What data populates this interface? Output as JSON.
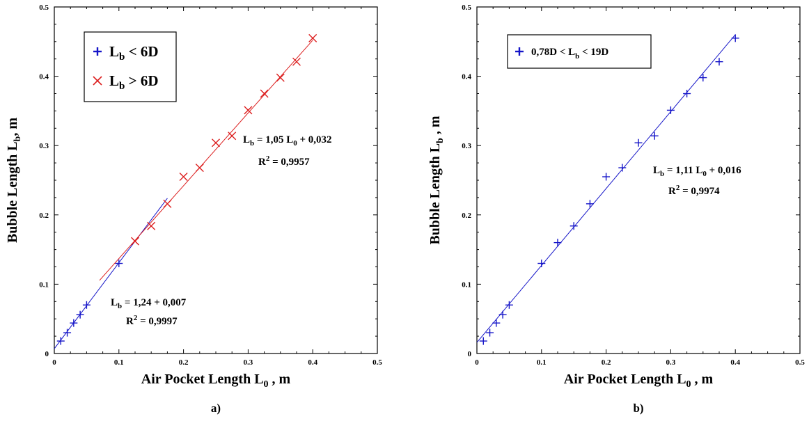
{
  "chart_data": [
    {
      "type": "scatter",
      "panel_label": "a)",
      "xlabel": "Air Pocket Length L0 , m",
      "ylabel": "Bubble Length Lb, m",
      "xlim": [
        0,
        0.5
      ],
      "ylim": [
        0,
        0.5
      ],
      "x_ticks": [
        "0",
        "0.1",
        "0.2",
        "0.3",
        "0.4",
        "0.5"
      ],
      "y_ticks": [
        "0",
        "0.1",
        "0.2",
        "0.3",
        "0.4",
        "0.5"
      ],
      "legend_placement": "top-left",
      "series": [
        {
          "name": "Lb < 6D",
          "marker": "plus",
          "color": "#1414c8",
          "x": [
            0.01,
            0.02,
            0.03,
            0.04,
            0.05,
            0.1
          ],
          "y": [
            0.018,
            0.03,
            0.044,
            0.056,
            0.07,
            0.13
          ],
          "fit": {
            "slope": 1.24,
            "intercept": 0.007,
            "x_range": [
              0.0,
              0.175
            ],
            "equation": {
              "lhs": "L",
              "lhs_sub": "b",
              "rhs": " = 1,24 + 0,007"
            },
            "r2": {
              "base": "R",
              "sup": "2",
              "rest": " = 0,9997"
            }
          }
        },
        {
          "name": "Lb > 6D",
          "marker": "x",
          "color": "#dc1e1e",
          "x": [
            0.125,
            0.15,
            0.175,
            0.2,
            0.225,
            0.25,
            0.275,
            0.3,
            0.325,
            0.35,
            0.375,
            0.4
          ],
          "y": [
            0.162,
            0.184,
            0.216,
            0.255,
            0.268,
            0.304,
            0.314,
            0.351,
            0.375,
            0.398,
            0.421,
            0.455
          ],
          "fit": {
            "slope": 1.05,
            "intercept": 0.032,
            "x_range": [
              0.07,
              0.4
            ],
            "equation": {
              "lhs": "L",
              "lhs_sub": "b",
              "rhs": " = 1,05 L",
              "rhs_sub": "0",
              "tail": " + 0,032"
            },
            "r2": {
              "base": "R",
              "sup": "2",
              "rest": " = 0,9957"
            }
          }
        }
      ],
      "legend": [
        {
          "marker": "plus",
          "label": "L",
          "sub": "b",
          "rest": " < 6D"
        },
        {
          "marker": "x",
          "label": "L",
          "sub": "b",
          "rest": " > 6D"
        }
      ]
    },
    {
      "type": "scatter",
      "panel_label": "b)",
      "xlabel": "Air Pocket Length L0 , m",
      "ylabel": "Bubble Length Lb , m",
      "xlim": [
        0,
        0.5
      ],
      "ylim": [
        0,
        0.5
      ],
      "x_ticks": [
        "0",
        "0.1",
        "0.2",
        "0.3",
        "0.4",
        "0.5"
      ],
      "y_ticks": [
        "0",
        "0.1",
        "0.2",
        "0.3",
        "0.4",
        "0.5"
      ],
      "legend_placement": "top-left",
      "series": [
        {
          "name": "0,78D < Lb < 19D",
          "marker": "plus",
          "color": "#1414c8",
          "x": [
            0.01,
            0.02,
            0.03,
            0.04,
            0.05,
            0.1,
            0.125,
            0.15,
            0.175,
            0.2,
            0.225,
            0.25,
            0.275,
            0.3,
            0.325,
            0.35,
            0.375,
            0.4
          ],
          "y": [
            0.018,
            0.03,
            0.044,
            0.056,
            0.07,
            0.13,
            0.16,
            0.184,
            0.216,
            0.255,
            0.268,
            0.304,
            0.314,
            0.351,
            0.375,
            0.398,
            0.421,
            0.455
          ],
          "fit": {
            "slope": 1.11,
            "intercept": 0.016,
            "x_range": [
              0.0,
              0.4
            ],
            "equation": {
              "lhs": "L",
              "lhs_sub": "b",
              "rhs": " = 1,11 L",
              "rhs_sub": "0",
              "tail": " + 0,016"
            },
            "r2": {
              "base": "R",
              "sup": "2",
              "rest": " = 0,9974"
            }
          }
        }
      ],
      "legend": [
        {
          "marker": "plus",
          "label": "0,78D < L",
          "sub": "b",
          "rest": " < 19D"
        }
      ]
    }
  ]
}
